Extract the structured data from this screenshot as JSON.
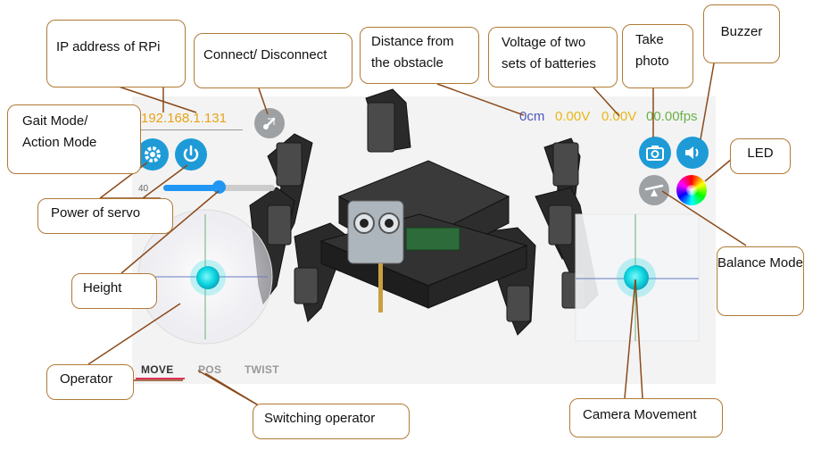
{
  "app": {
    "ip_address": "192.168.1.131",
    "distance": "0cm",
    "voltage_1": "0.00V",
    "voltage_2": "0.00V",
    "fps": "00.00fps",
    "height_value": "40",
    "height_level": 0.5,
    "tabs": [
      {
        "label": "MOVE",
        "active": true
      },
      {
        "label": "POS",
        "active": false
      },
      {
        "label": "TWIST",
        "active": false
      }
    ],
    "colors": {
      "accent": "#1e9bd7",
      "ip": "#e8a317",
      "distance": "#4a57b8",
      "voltage": "#e8b817",
      "fps": "#6bb04a",
      "tab_active_underline": "#e0305a",
      "joystick_knob": "#10d8e0"
    },
    "icons": {
      "connect": "link-icon",
      "gait": "gear-icon",
      "power": "power-icon",
      "camera": "camera-icon",
      "buzzer": "speaker-icon",
      "balance": "balance-icon",
      "led": "color-wheel-icon"
    }
  },
  "callouts": {
    "ip": "IP address of RPi",
    "connect": "Connect/ Disconnect",
    "distance": "Distance from the obstacle",
    "voltage": "Voltage of two sets of batteries",
    "photo": "Take photo",
    "buzzer": "Buzzer",
    "gait": "Gait Mode/ Action Mode",
    "led": "LED",
    "servo": "Power of servo",
    "balance": "Balance Mode",
    "height": "Height",
    "operator": "Operator",
    "switching": "Switching operator",
    "camera_move": "Camera Movement"
  }
}
